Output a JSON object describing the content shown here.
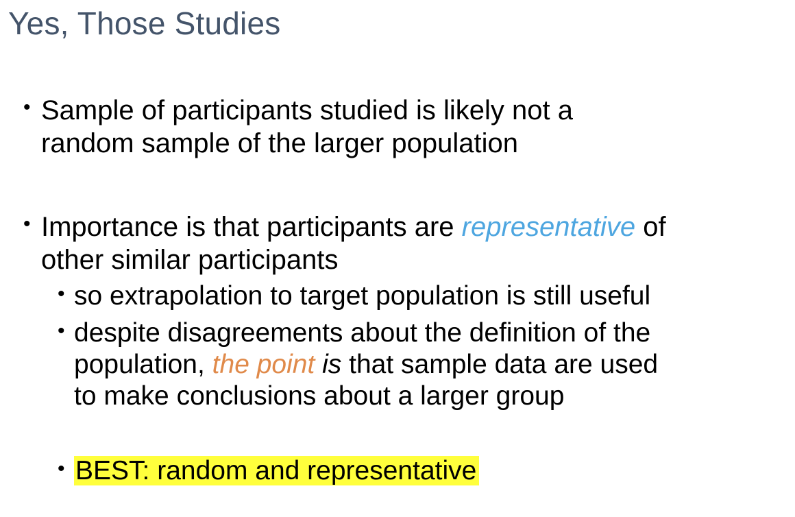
{
  "slide": {
    "title": "Yes, Those Studies",
    "bullet1": {
      "line1": "Sample of participants studied is likely not a",
      "line2": "random sample of the larger population"
    },
    "bullet2": {
      "prefix": "Importance is that participants are ",
      "emphasis": "representative",
      "suffix": " of",
      "line2": "other similar participants"
    },
    "sub1": {
      "text": "so extrapolation to target population is still useful"
    },
    "sub2": {
      "line1": "despite disagreements about the definition of the",
      "line2_prefix": "population, ",
      "line2_emphasis": "the point",
      "line2_italic": "is",
      "line2_suffix": " that sample data are used",
      "line3": "to make conclusions about a larger group"
    },
    "sub3": {
      "text": "BEST: random and representative"
    },
    "bullet_glyph": "•",
    "colors": {
      "title": "#44546a",
      "representative": "#4ea6e0",
      "the_point": "#e08a4a",
      "highlight": "#ffff3c"
    }
  }
}
